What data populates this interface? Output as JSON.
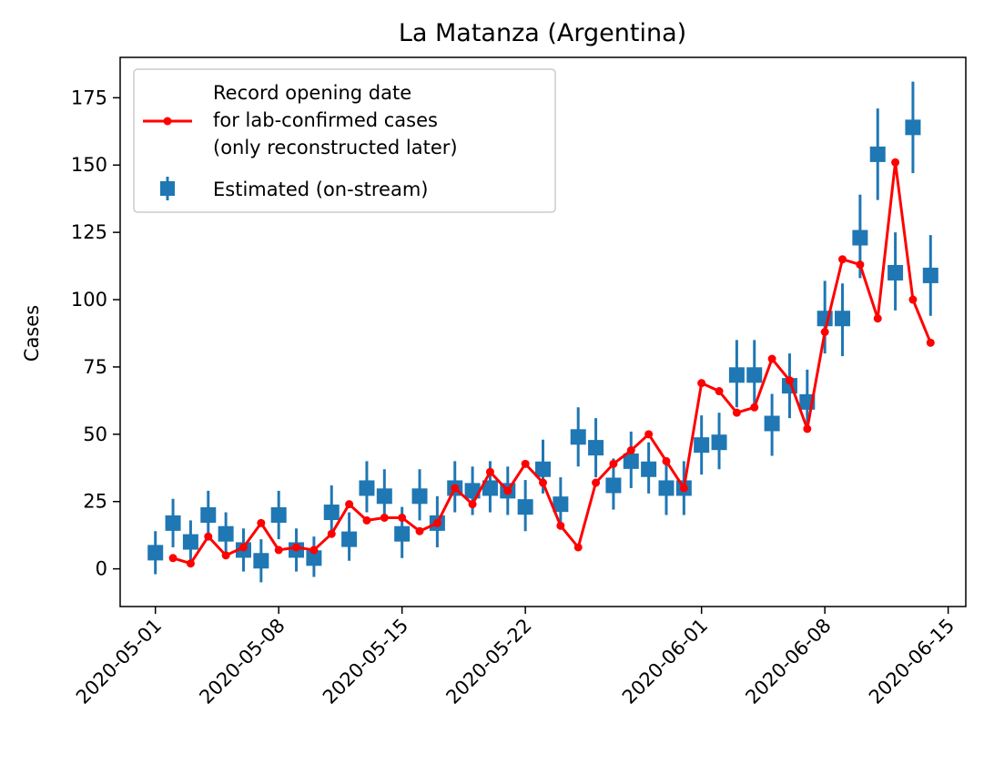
{
  "chart_data": {
    "type": "line",
    "title": "La Matanza (Argentina)",
    "xlabel": "",
    "ylabel": "Cases",
    "ylim": [
      -14,
      190
    ],
    "xlim_days": [
      -2,
      46
    ],
    "x_start_date": "2020-05-01",
    "x_ticks": [
      {
        "day": 0,
        "label": "2020-05-01"
      },
      {
        "day": 7,
        "label": "2020-05-08"
      },
      {
        "day": 14,
        "label": "2020-05-15"
      },
      {
        "day": 21,
        "label": "2020-05-22"
      },
      {
        "day": 31,
        "label": "2020-06-01"
      },
      {
        "day": 38,
        "label": "2020-06-08"
      },
      {
        "day": 45,
        "label": "2020-06-15"
      }
    ],
    "y_ticks": [
      0,
      25,
      50,
      75,
      100,
      125,
      150,
      175
    ],
    "legend_position": "top-left",
    "series": [
      {
        "name": "Record opening date for lab-confirmed cases (only reconstructed later)",
        "legend_lines": [
          "Record opening date",
          "for lab-confirmed cases",
          "(only reconstructed later)"
        ],
        "color": "#ff0000",
        "style": "line-with-dots",
        "x_days": [
          1,
          2,
          3,
          4,
          5,
          6,
          7,
          8,
          9,
          10,
          11,
          12,
          13,
          14,
          15,
          16,
          17,
          18,
          19,
          20,
          21,
          22,
          23,
          24,
          25,
          26,
          27,
          28,
          29,
          30,
          31,
          32,
          33,
          34,
          35,
          36,
          37,
          38,
          39,
          40,
          41,
          42,
          43,
          44
        ],
        "values": [
          4,
          2,
          12,
          5,
          8,
          17,
          7,
          8,
          7,
          13,
          24,
          18,
          19,
          19,
          14,
          17,
          30,
          24,
          36,
          29,
          39,
          32,
          16,
          8,
          32,
          39,
          44,
          50,
          40,
          30,
          69,
          66,
          58,
          60,
          78,
          70,
          52,
          88,
          115,
          113,
          93,
          151,
          100,
          84
        ]
      },
      {
        "name": "Estimated (on-stream)",
        "legend_lines": [
          "Estimated (on-stream)"
        ],
        "color": "#1f77b4",
        "style": "square-errorbar",
        "x_days": [
          0,
          1,
          2,
          3,
          4,
          5,
          6,
          7,
          8,
          9,
          10,
          11,
          12,
          13,
          14,
          15,
          16,
          17,
          18,
          19,
          20,
          21,
          22,
          23,
          24,
          25,
          26,
          27,
          28,
          29,
          30,
          31,
          32,
          33,
          34,
          35,
          36,
          37,
          38,
          39,
          40,
          41,
          42,
          43,
          44
        ],
        "values": [
          6,
          17,
          10,
          20,
          13,
          7,
          3,
          20,
          7,
          4,
          21,
          11,
          30,
          27,
          13,
          27,
          17,
          30,
          29,
          30,
          29,
          23,
          37,
          24,
          49,
          45,
          31,
          40,
          37,
          30,
          30,
          46,
          47,
          72,
          72,
          54,
          68,
          62,
          93,
          93,
          123,
          154,
          110,
          164,
          109
        ],
        "err_low": [
          -2,
          8,
          3,
          11,
          6,
          -1,
          -5,
          11,
          -1,
          -3,
          12,
          3,
          21,
          18,
          4,
          18,
          8,
          21,
          20,
          21,
          20,
          14,
          28,
          15,
          38,
          34,
          22,
          30,
          28,
          20,
          20,
          35,
          37,
          60,
          60,
          42,
          56,
          51,
          80,
          79,
          108,
          137,
          96,
          147,
          94
        ],
        "err_high": [
          14,
          26,
          18,
          29,
          21,
          15,
          11,
          29,
          15,
          12,
          31,
          21,
          40,
          37,
          23,
          37,
          27,
          40,
          38,
          40,
          38,
          33,
          48,
          34,
          60,
          56,
          41,
          51,
          47,
          40,
          40,
          57,
          58,
          85,
          85,
          65,
          80,
          74,
          107,
          106,
          139,
          171,
          125,
          181,
          124
        ]
      }
    ]
  }
}
